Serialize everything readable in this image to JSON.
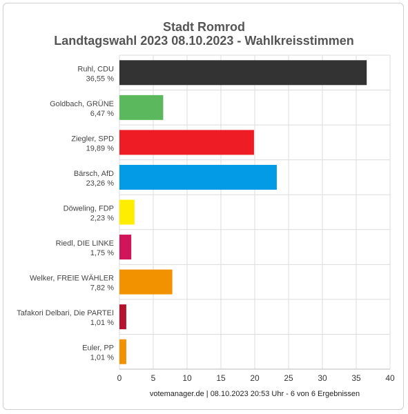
{
  "chart_data": {
    "type": "bar",
    "orientation": "horizontal",
    "title": "Stadt Romrod",
    "subtitle": "Landtagswahl 2023 08.10.2023  - Wahlkreisstimmen",
    "categories": [
      "Ruhl, CDU",
      "Goldbach, GRÜNE",
      "Ziegler, SPD",
      "Bärsch, AfD",
      "Döweling, FDP",
      "Riedl, DIE LINKE",
      "Welker, FREIE WÄHLER",
      "Tafakori Delbari, Die PARTEI",
      "Euler, PP"
    ],
    "values": [
      36.55,
      6.47,
      19.89,
      23.26,
      2.23,
      1.75,
      7.82,
      1.01,
      1.01
    ],
    "value_labels": [
      "36,55 %",
      "6,47 %",
      "19,89 %",
      "23,26 %",
      "2,23 %",
      "1,75 %",
      "7,82 %",
      "1,01 %",
      "1,01 %"
    ],
    "colors": [
      "#333333",
      "#5cb85c",
      "#ee1c25",
      "#039be5",
      "#ffed00",
      "#d0155a",
      "#f39200",
      "#b5122e",
      "#f39200"
    ],
    "xlim": [
      0,
      40
    ],
    "xticks": [
      0,
      5,
      10,
      15,
      20,
      25,
      30,
      35,
      40
    ],
    "grid": true,
    "legend": "none"
  },
  "footer": "votemanager.de | 08.10.2023 20:53 Uhr - 6 von 6 Ergebnissen"
}
